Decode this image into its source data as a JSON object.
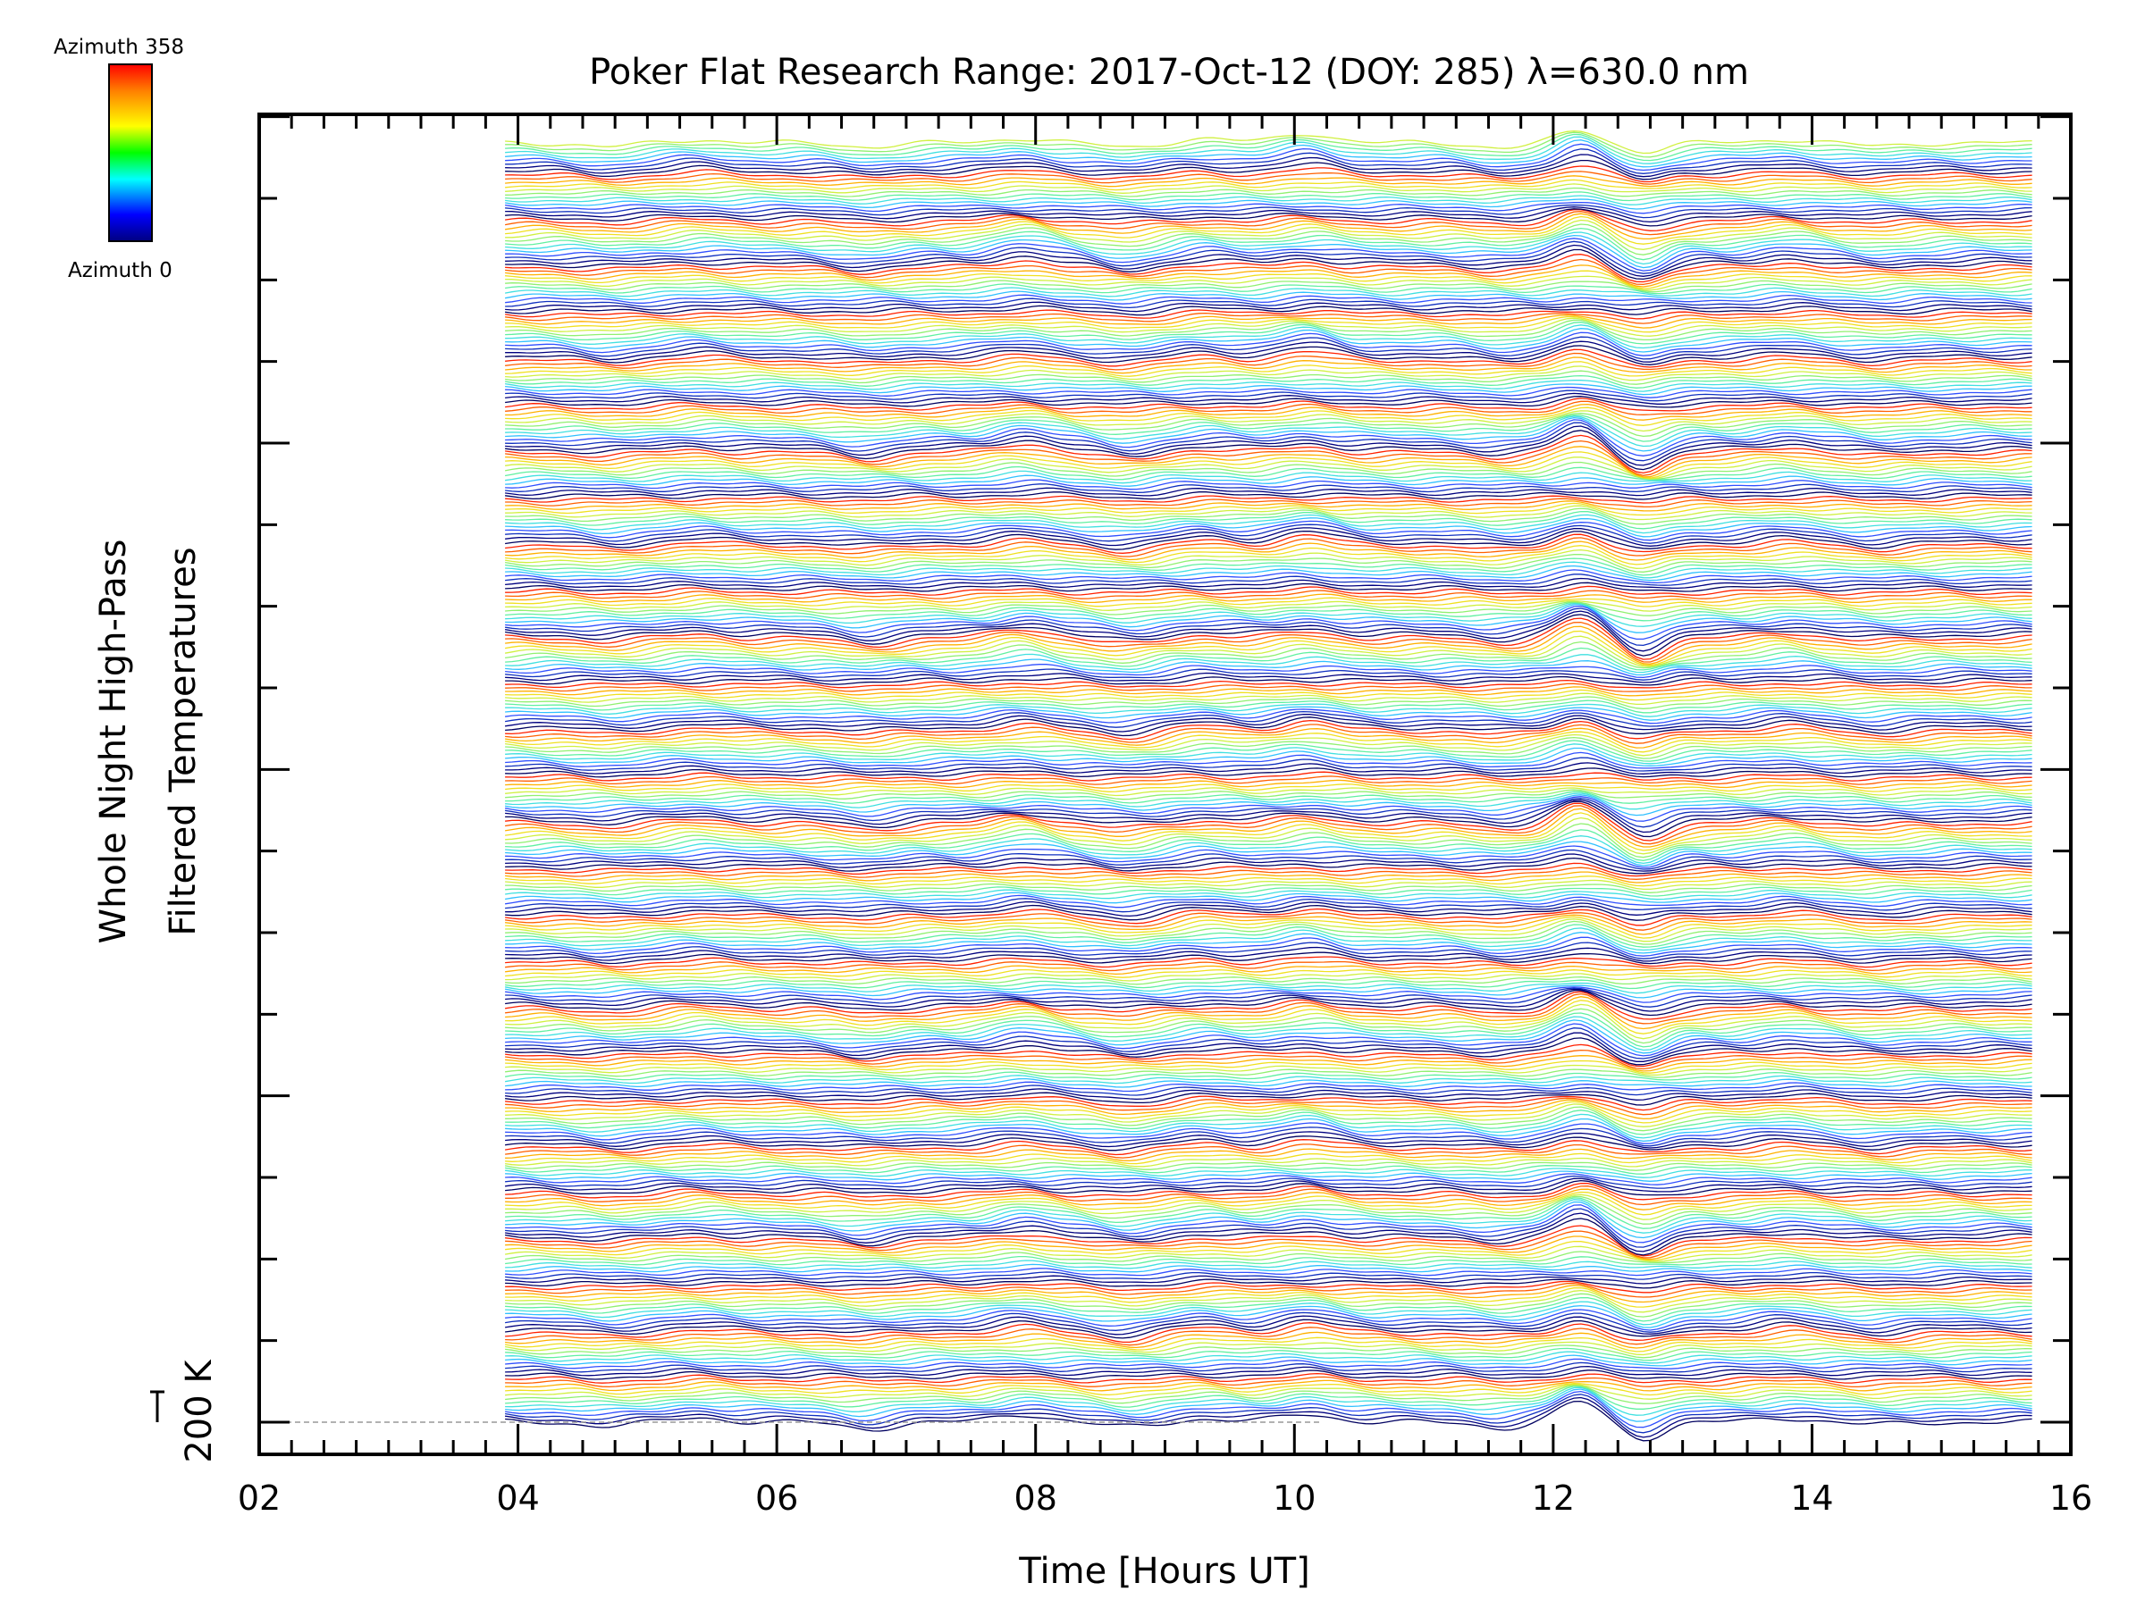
{
  "chart_data": {
    "type": "line",
    "title": "Poker Flat Research Range: 2017-Oct-12 (DOY: 285) λ=630.0 nm",
    "xlabel": "Time [Hours UT]",
    "ylabel_line1": "Whole Night High-Pass",
    "ylabel_line2": "Filtered Temperatures",
    "scale_bar_label": "200 K",
    "xlim": [
      2,
      16
    ],
    "x_ticks": [
      "02",
      "04",
      "06",
      "08",
      "10",
      "12",
      "14",
      "16"
    ],
    "data_start_hour": 3.9,
    "data_end_hour": 15.7,
    "num_traces": 360,
    "azimuth_range": [
      0,
      358
    ],
    "colorbar": {
      "top_label": "Azimuth 358",
      "bottom_label": "Azimuth 0",
      "colors": [
        "#000080",
        "#0000ff",
        "#00ffff",
        "#00ff00",
        "#ffff00",
        "#ff8000",
        "#ff0000"
      ]
    },
    "azimuth_bands": [
      "#000060",
      "#000080",
      "#1030c0",
      "#3050ff",
      "#30c0ff",
      "#40e0e0",
      "#60f0a0",
      "#90f070",
      "#d0f040",
      "#f0e020",
      "#ffb000",
      "#ff6000",
      "#ff2000"
    ],
    "features": [
      {
        "hour": 4.7,
        "amp": -4
      },
      {
        "hour": 5.4,
        "amp": 4
      },
      {
        "hour": 6.7,
        "amp": -6
      },
      {
        "hour": 7.9,
        "amp": 9
      },
      {
        "hour": 8.7,
        "amp": -7
      },
      {
        "hour": 9.3,
        "amp": 5
      },
      {
        "hour": 10.1,
        "amp": 10
      },
      {
        "hour": 11.6,
        "amp": -5
      },
      {
        "hour": 12.2,
        "amp": 18
      },
      {
        "hour": 12.7,
        "amp": -16
      },
      {
        "hour": 13.8,
        "amp": 6
      },
      {
        "hour": 14.5,
        "amp": -4
      }
    ]
  }
}
